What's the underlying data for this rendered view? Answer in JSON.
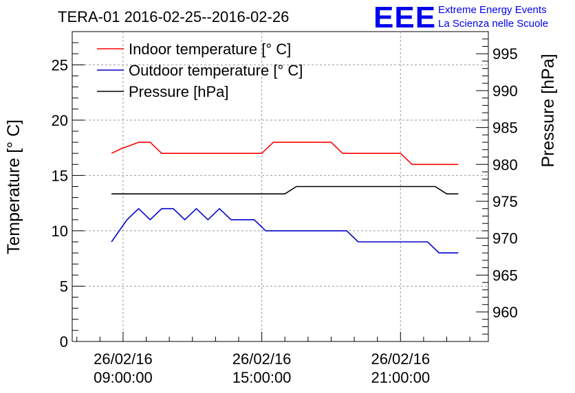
{
  "chart_data": {
    "type": "line",
    "title": "TERA-01 2016-02-25--2016-02-26",
    "logo": {
      "mark": "EEE",
      "line1": "Extreme Energy Events",
      "line2": "La Scienza nelle Scuole"
    },
    "ylabel_left": "Temperature [° C]",
    "ylabel_right": "Pressure [hPa]",
    "ylim_left": [
      0,
      28
    ],
    "ylim_right": [
      956,
      998
    ],
    "xlim_hours": [
      6.8,
      24.8
    ],
    "yticks_left": [
      "0",
      "5",
      "10",
      "15",
      "20",
      "25"
    ],
    "yticks_right": [
      "960",
      "965",
      "970",
      "975",
      "980",
      "985",
      "990",
      "995"
    ],
    "xticks": [
      {
        "hour": 9,
        "date": "26/02/16",
        "time": "09:00:00"
      },
      {
        "hour": 15,
        "date": "26/02/16",
        "time": "15:00:00"
      },
      {
        "hour": 21,
        "date": "26/02/16",
        "time": "21:00:00"
      }
    ],
    "grid": true,
    "legend_position": "top-left",
    "series": [
      {
        "name": "Indoor temperature [° C]",
        "axis": "left",
        "color": "#ff0000",
        "x": [
          8.5,
          9.0,
          9.17,
          9.67,
          10.17,
          10.67,
          11.17,
          11.67,
          12.17,
          12.67,
          13.17,
          13.67,
          14.17,
          14.67,
          15.0,
          15.5,
          16.0,
          16.5,
          17.0,
          17.5,
          18.0,
          18.5,
          19.0,
          19.5,
          20.0,
          20.5,
          21.0,
          21.5,
          22.0,
          22.5,
          23.0,
          23.5
        ],
        "y": [
          17,
          17.5,
          17.6,
          18,
          18,
          17,
          17,
          17,
          17,
          17,
          17,
          17,
          17,
          17,
          17,
          18,
          18,
          18,
          18,
          18,
          18,
          17,
          17,
          17,
          17,
          17,
          17,
          16,
          16,
          16,
          16,
          16
        ]
      },
      {
        "name": "Outdoor temperature [° C]",
        "axis": "left",
        "color": "#0000cc",
        "x": [
          8.5,
          9.17,
          9.67,
          10.17,
          10.67,
          11.17,
          11.67,
          12.17,
          12.67,
          13.17,
          13.67,
          14.17,
          14.67,
          15.17,
          15.67,
          16.17,
          16.67,
          17.17,
          17.67,
          18.17,
          18.67,
          19.17,
          19.67,
          20.17,
          20.67,
          21.17,
          21.67,
          22.17,
          22.67,
          23.17,
          23.5
        ],
        "y": [
          9,
          11,
          12,
          11,
          12,
          12,
          11,
          12,
          11,
          12,
          11,
          11,
          11,
          10,
          10,
          10,
          10,
          10,
          10,
          10,
          10,
          9,
          9,
          9,
          9,
          9,
          9,
          9,
          8,
          8,
          8
        ]
      },
      {
        "name": "Pressure [hPa]",
        "axis": "right",
        "color": "#000000",
        "x": [
          8.5,
          10.0,
          12.0,
          14.0,
          16.0,
          16.5,
          17.0,
          19.0,
          21.0,
          22.5,
          23.0,
          23.5
        ],
        "y": [
          976,
          976,
          976,
          976,
          976,
          977,
          977,
          977,
          977,
          977,
          976,
          976
        ]
      }
    ]
  }
}
